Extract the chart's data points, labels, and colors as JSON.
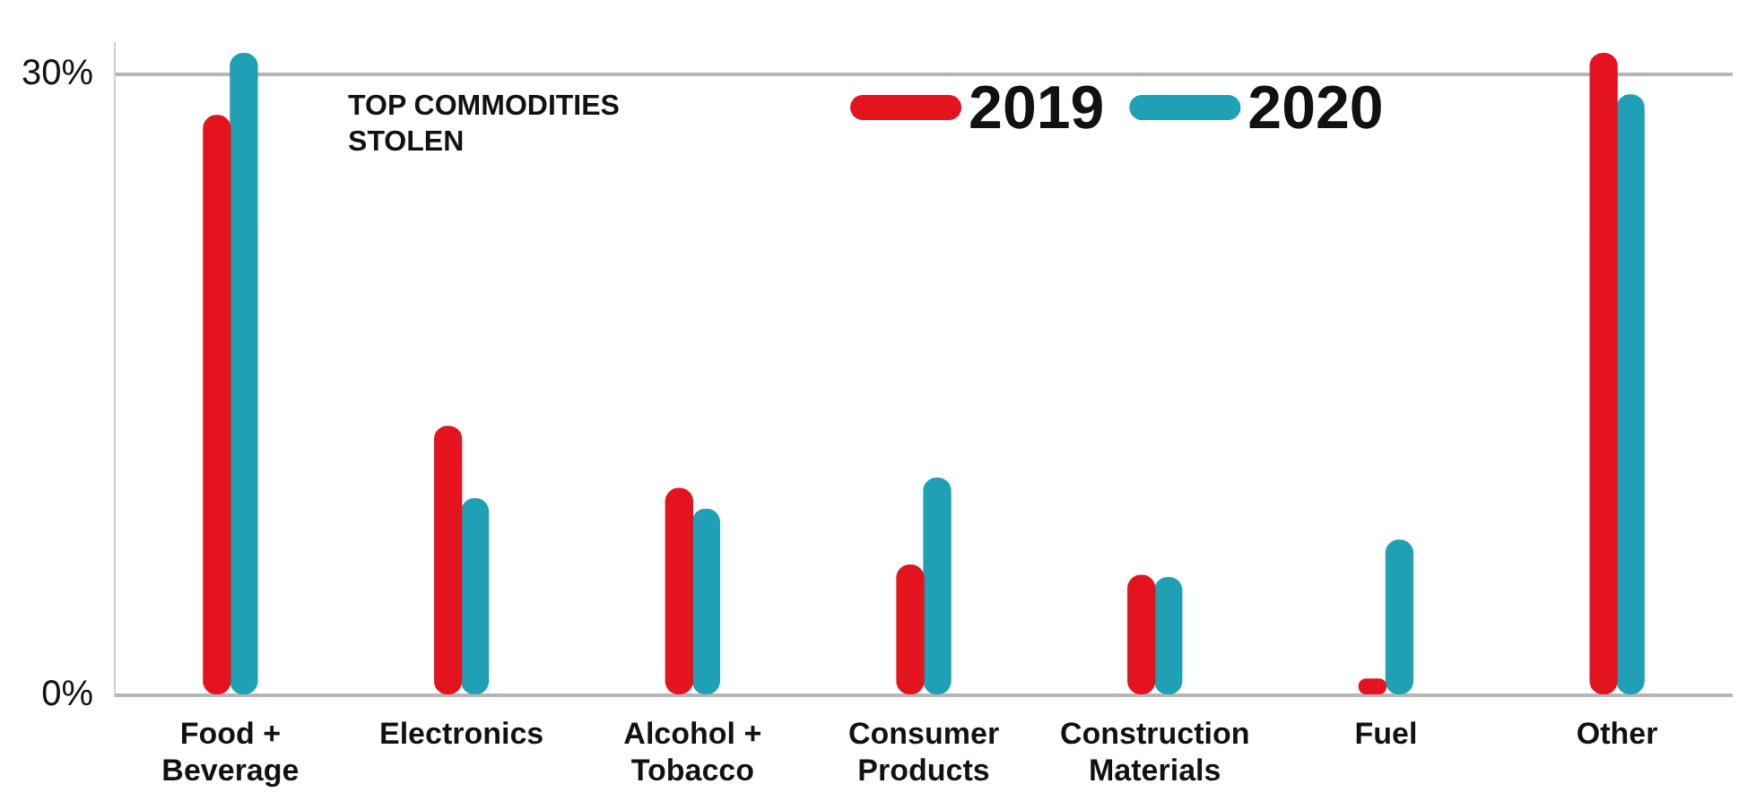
{
  "chart_data": {
    "type": "bar",
    "title": "TOP COMMODITIES STOLEN",
    "categories": [
      "Food + Beverage",
      "Electronics",
      "Alcohol + Tobacco",
      "Consumer Products",
      "Construction Materials",
      "Fuel",
      "Other"
    ],
    "series": [
      {
        "name": "2019",
        "color": "#e3141e",
        "values": [
          28,
          13,
          10,
          6.3,
          5.8,
          0.8,
          31
        ]
      },
      {
        "name": "2020",
        "color": "#1fa0b5",
        "values": [
          31,
          9.5,
          9,
          10.5,
          5.7,
          7.5,
          29
        ]
      }
    ],
    "ylim": [
      0,
      31.5
    ],
    "yticks": [
      {
        "value": 0,
        "label": "0%"
      },
      {
        "value": 30,
        "label": "30%"
      }
    ],
    "grid": "y",
    "legend": "top"
  }
}
